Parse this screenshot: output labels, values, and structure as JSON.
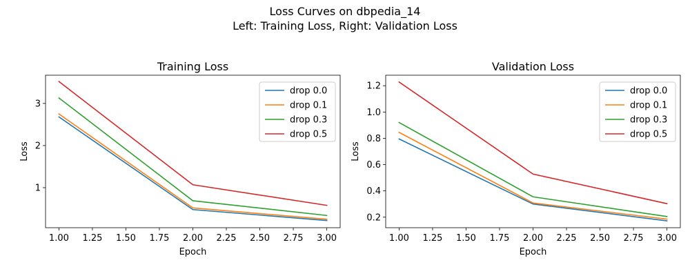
{
  "figure": {
    "title_line1": "Loss Curves on dbpedia_14",
    "title_line2": "Left: Training Loss, Right: Validation Loss"
  },
  "chart_data": [
    {
      "type": "line",
      "title": "Training Loss",
      "xlabel": "Epoch",
      "ylabel": "Loss",
      "xlim": [
        0.9,
        3.1
      ],
      "ylim": [
        0.05,
        3.67
      ],
      "xticks": [
        1.0,
        1.25,
        1.5,
        1.75,
        2.0,
        2.25,
        2.5,
        2.75,
        3.0
      ],
      "xtick_labels": [
        "1.00",
        "1.25",
        "1.50",
        "1.75",
        "2.00",
        "2.25",
        "2.50",
        "2.75",
        "3.00"
      ],
      "yticks": [
        1,
        2,
        3
      ],
      "ytick_labels": [
        "1",
        "2",
        "3"
      ],
      "grid": false,
      "legend": "top-right",
      "x": [
        1,
        2,
        3
      ],
      "series": [
        {
          "name": "drop 0.0",
          "color": "#1f77b4",
          "values": [
            2.68,
            0.48,
            0.22
          ]
        },
        {
          "name": "drop 0.1",
          "color": "#ff7f0e",
          "values": [
            2.75,
            0.52,
            0.25
          ]
        },
        {
          "name": "drop 0.3",
          "color": "#2ca02c",
          "values": [
            3.13,
            0.69,
            0.34
          ]
        },
        {
          "name": "drop 0.5",
          "color": "#d62728",
          "values": [
            3.52,
            1.07,
            0.58
          ]
        }
      ]
    },
    {
      "type": "line",
      "title": "Validation Loss",
      "xlabel": "Epoch",
      "ylabel": "Loss",
      "xlim": [
        0.9,
        3.1
      ],
      "ylim": [
        0.12,
        1.28
      ],
      "xticks": [
        1.0,
        1.25,
        1.5,
        1.75,
        2.0,
        2.25,
        2.5,
        2.75,
        3.0
      ],
      "xtick_labels": [
        "1.00",
        "1.25",
        "1.50",
        "1.75",
        "2.00",
        "2.25",
        "2.50",
        "2.75",
        "3.00"
      ],
      "yticks": [
        0.2,
        0.4,
        0.6,
        0.8,
        1.0,
        1.2
      ],
      "ytick_labels": [
        "0.2",
        "0.4",
        "0.6",
        "0.8",
        "1.0",
        "1.2"
      ],
      "grid": false,
      "legend": "top-right",
      "x": [
        1,
        2,
        3
      ],
      "series": [
        {
          "name": "drop 0.0",
          "color": "#1f77b4",
          "values": [
            0.795,
            0.3,
            0.172
          ]
        },
        {
          "name": "drop 0.1",
          "color": "#ff7f0e",
          "values": [
            0.845,
            0.308,
            0.185
          ]
        },
        {
          "name": "drop 0.3",
          "color": "#2ca02c",
          "values": [
            0.92,
            0.355,
            0.205
          ]
        },
        {
          "name": "drop 0.5",
          "color": "#d62728",
          "values": [
            1.228,
            0.528,
            0.303
          ]
        }
      ]
    }
  ]
}
